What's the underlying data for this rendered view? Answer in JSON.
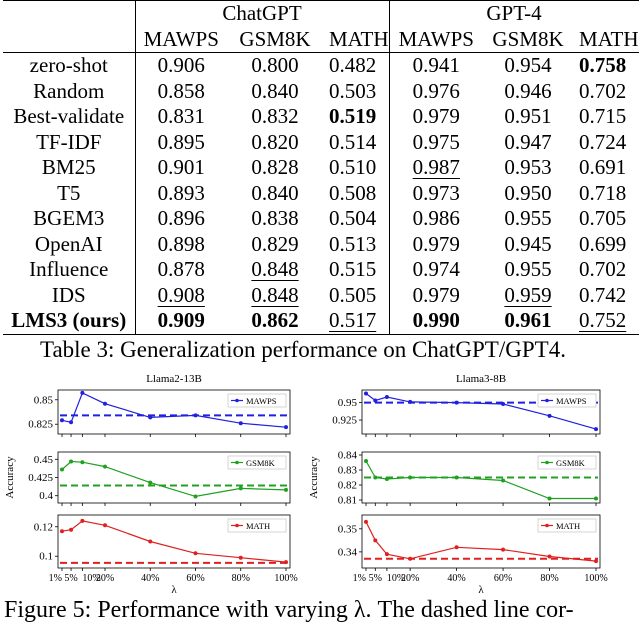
{
  "table": {
    "group_headers": [
      "ChatGPT",
      "GPT-4"
    ],
    "col_headers": [
      "MAWPS",
      "GSM8K",
      "MATH",
      "MAWPS",
      "GSM8K",
      "MATH"
    ],
    "rows": [
      {
        "method": "zero-shot",
        "bold_method": false,
        "cells": [
          {
            "v": "0.906"
          },
          {
            "v": "0.800"
          },
          {
            "v": "0.482"
          },
          {
            "v": "0.941"
          },
          {
            "v": "0.954"
          },
          {
            "v": "0.758",
            "b": true
          }
        ]
      },
      {
        "method": "Random",
        "bold_method": false,
        "cells": [
          {
            "v": "0.858"
          },
          {
            "v": "0.840"
          },
          {
            "v": "0.503"
          },
          {
            "v": "0.976"
          },
          {
            "v": "0.946"
          },
          {
            "v": "0.702"
          }
        ]
      },
      {
        "method": "Best-validate",
        "bold_method": false,
        "cells": [
          {
            "v": "0.831"
          },
          {
            "v": "0.832"
          },
          {
            "v": "0.519",
            "b": true
          },
          {
            "v": "0.979"
          },
          {
            "v": "0.951"
          },
          {
            "v": "0.715"
          }
        ]
      },
      {
        "method": "TF-IDF",
        "bold_method": false,
        "cells": [
          {
            "v": "0.895"
          },
          {
            "v": "0.820"
          },
          {
            "v": "0.514"
          },
          {
            "v": "0.975"
          },
          {
            "v": "0.947"
          },
          {
            "v": "0.724"
          }
        ]
      },
      {
        "method": "BM25",
        "bold_method": false,
        "cells": [
          {
            "v": "0.901"
          },
          {
            "v": "0.828"
          },
          {
            "v": "0.510"
          },
          {
            "v": "0.987",
            "u": true
          },
          {
            "v": "0.953"
          },
          {
            "v": "0.691"
          }
        ]
      },
      {
        "method": "T5",
        "bold_method": false,
        "cells": [
          {
            "v": "0.893"
          },
          {
            "v": "0.840"
          },
          {
            "v": "0.508"
          },
          {
            "v": "0.973"
          },
          {
            "v": "0.950"
          },
          {
            "v": "0.718"
          }
        ]
      },
      {
        "method": "BGEM3",
        "bold_method": false,
        "cells": [
          {
            "v": "0.896"
          },
          {
            "v": "0.838"
          },
          {
            "v": "0.504"
          },
          {
            "v": "0.986"
          },
          {
            "v": "0.955"
          },
          {
            "v": "0.705"
          }
        ]
      },
      {
        "method": "OpenAI",
        "bold_method": false,
        "cells": [
          {
            "v": "0.898"
          },
          {
            "v": "0.829"
          },
          {
            "v": "0.513"
          },
          {
            "v": "0.979"
          },
          {
            "v": "0.945"
          },
          {
            "v": "0.699"
          }
        ]
      },
      {
        "method": "Influence",
        "bold_method": false,
        "cells": [
          {
            "v": "0.878"
          },
          {
            "v": "0.848",
            "u": true
          },
          {
            "v": "0.515"
          },
          {
            "v": "0.974"
          },
          {
            "v": "0.955"
          },
          {
            "v": "0.702"
          }
        ]
      },
      {
        "method": "IDS",
        "bold_method": false,
        "cells": [
          {
            "v": "0.908",
            "u": true
          },
          {
            "v": "0.848",
            "u": true
          },
          {
            "v": "0.505"
          },
          {
            "v": "0.979"
          },
          {
            "v": "0.959",
            "u": true
          },
          {
            "v": "0.742"
          }
        ]
      },
      {
        "method": "LMS3 (ours)",
        "bold_method": true,
        "cells": [
          {
            "v": "0.909",
            "b": true
          },
          {
            "v": "0.862",
            "b": true
          },
          {
            "v": "0.517",
            "u": true
          },
          {
            "v": "0.990",
            "b": true
          },
          {
            "v": "0.961",
            "b": true
          },
          {
            "v": "0.752",
            "u": true
          }
        ]
      }
    ]
  },
  "table_caption": "Table 3: Generalization performance on ChatGPT/GPT4.",
  "chart_data": [
    {
      "type": "line",
      "title": "Llama2-13B",
      "panel": "MAWPS",
      "series": [
        {
          "name": "MAWPS",
          "values": [
            0.829,
            0.827,
            0.857,
            0.846,
            0.832,
            0.834,
            0.826,
            0.822
          ]
        }
      ],
      "baseline": 0.834,
      "ylim": [
        0.815,
        0.86
      ],
      "yticks": [
        0.825,
        0.85
      ],
      "ylabel": "",
      "color": "#2020e0"
    },
    {
      "type": "line",
      "title": "Llama2-13B",
      "panel": "GSM8K",
      "series": [
        {
          "name": "GSM8K",
          "values": [
            0.436,
            0.447,
            0.446,
            0.44,
            0.418,
            0.399,
            0.41,
            0.408
          ]
        }
      ],
      "baseline": 0.414,
      "ylim": [
        0.39,
        0.46
      ],
      "yticks": [
        0.4,
        0.425,
        0.45
      ],
      "ylabel": "Accuracy",
      "color": "#20a020"
    },
    {
      "type": "line",
      "title": "Llama2-13B",
      "panel": "MATH",
      "series": [
        {
          "name": "MATH",
          "values": [
            0.117,
            0.118,
            0.124,
            0.121,
            0.11,
            0.102,
            0.099,
            0.096
          ]
        }
      ],
      "baseline": 0.0955,
      "ylim": [
        0.092,
        0.128
      ],
      "yticks": [
        0.1,
        0.12
      ],
      "ylabel": "",
      "color": "#e02020"
    },
    {
      "type": "line",
      "title": "Llama3-8B",
      "panel": "MAWPS",
      "series": [
        {
          "name": "MAWPS",
          "values": [
            0.963,
            0.953,
            0.958,
            0.951,
            0.95,
            0.948,
            0.931,
            0.912
          ]
        }
      ],
      "baseline": 0.95,
      "ylim": [
        0.905,
        0.968
      ],
      "yticks": [
        0.925,
        0.95
      ],
      "ylabel": "",
      "color": "#2020e0"
    },
    {
      "type": "line",
      "title": "Llama3-8B",
      "panel": "GSM8K",
      "series": [
        {
          "name": "GSM8K",
          "values": [
            0.836,
            0.825,
            0.824,
            0.825,
            0.825,
            0.823,
            0.811,
            0.811
          ]
        }
      ],
      "baseline": 0.825,
      "ylim": [
        0.808,
        0.842
      ],
      "yticks": [
        0.81,
        0.82,
        0.83,
        0.84
      ],
      "ylabel": "Accuracy",
      "color": "#20a020"
    },
    {
      "type": "line",
      "title": "Llama3-8B",
      "panel": "MATH",
      "series": [
        {
          "name": "MATH",
          "values": [
            0.353,
            0.345,
            0.339,
            0.337,
            0.342,
            0.341,
            0.338,
            0.336
          ]
        }
      ],
      "baseline": 0.337,
      "ylim": [
        0.333,
        0.356
      ],
      "yticks": [
        0.34,
        0.35
      ],
      "ylabel": "",
      "color": "#e02020"
    }
  ],
  "x_ticks": [
    "1%",
    "5%",
    "10%",
    "20%",
    "40%",
    "60%",
    "80%",
    "100%"
  ],
  "x_values": [
    1,
    5,
    10,
    20,
    40,
    60,
    80,
    100
  ],
  "x_label": "λ",
  "figure_caption": "Figure 5: Performance with varying λ. The dashed line cor-"
}
